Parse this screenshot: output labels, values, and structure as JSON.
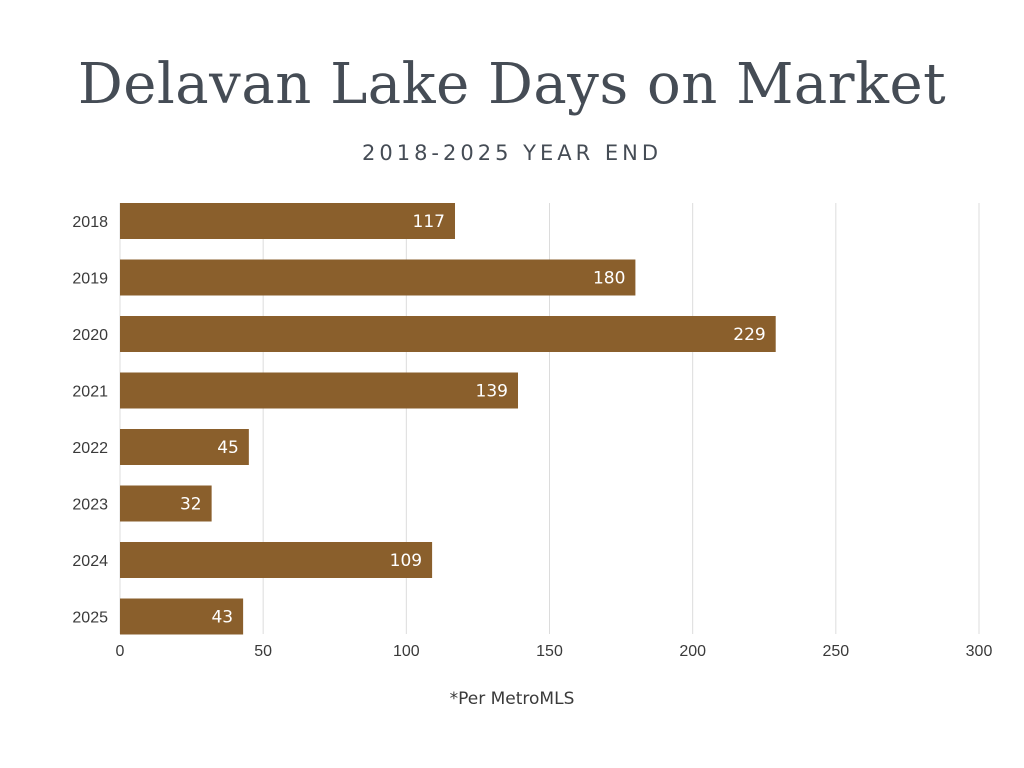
{
  "chart_data": {
    "type": "bar",
    "orientation": "horizontal",
    "title": "Delavan Lake Days on Market",
    "subtitle": "2018-2025 YEAR END",
    "categories": [
      "2018",
      "2019",
      "2020",
      "2021",
      "2022",
      "2023",
      "2024",
      "2025"
    ],
    "values": [
      117,
      180,
      229,
      139,
      45,
      32,
      109,
      43
    ],
    "xlim": [
      0,
      300
    ],
    "xticks": [
      0,
      50,
      100,
      150,
      200,
      250,
      300
    ],
    "grid": "vertical",
    "legend": "none",
    "bar_color": "#8a5f2c",
    "footnote": "*Per MetroMLS"
  }
}
